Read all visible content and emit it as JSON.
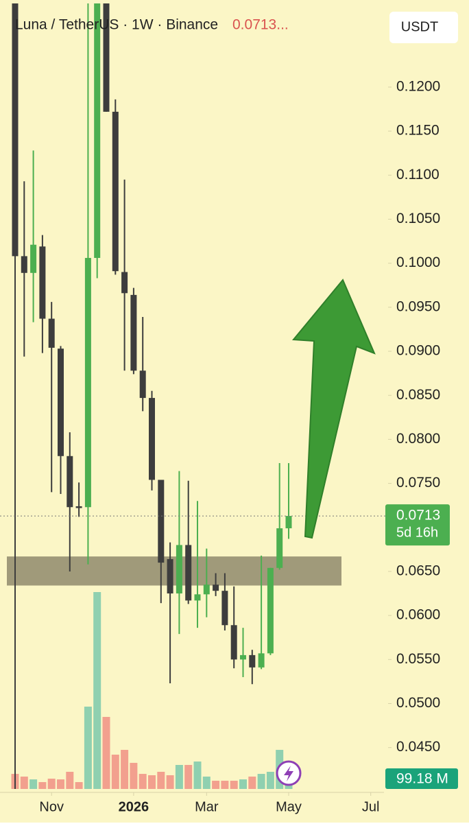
{
  "chart_data": {
    "type": "candlestick",
    "title": "Luna / TetherUS · 1W · Binance",
    "last_price_text": "0.0713...",
    "currency_button": "USDT",
    "open": [
      0.1295,
      0.1008,
      0.0989,
      0.1019,
      0.0937,
      0.0903,
      0.0781,
      0.0724,
      0.0723,
      0.1006,
      0.1295,
      0.1172,
      0.099,
      0.0964,
      0.0878,
      0.0847,
      0.0754,
      0.0664,
      0.0625,
      0.068,
      0.0617,
      0.0624,
      0.0635,
      0.0628,
      0.0589,
      0.055,
      0.0555,
      0.0541,
      0.0557,
      0.0654,
      0.0699
    ],
    "high": [
      0.1295,
      0.1093,
      0.1128,
      0.1032,
      0.0956,
      0.0906,
      0.0808,
      0.0751,
      0.1295,
      0.1295,
      0.1295,
      0.1186,
      0.1095,
      0.0972,
      0.0939,
      0.0855,
      0.0754,
      0.0683,
      0.0764,
      0.0753,
      0.073,
      0.0676,
      0.0648,
      0.0648,
      0.0633,
      0.0586,
      0.0561,
      0.0668,
      0.0654,
      0.0773,
      0.0773
    ],
    "low": [
      0.0403,
      0.0894,
      0.0933,
      0.0898,
      0.074,
      0.0738,
      0.065,
      0.0712,
      0.0658,
      0.0983,
      0.1172,
      0.0987,
      0.0878,
      0.0874,
      0.0832,
      0.0742,
      0.0614,
      0.0523,
      0.0579,
      0.0613,
      0.0586,
      0.0598,
      0.0622,
      0.0583,
      0.054,
      0.053,
      0.0522,
      0.0539,
      0.0555,
      0.0652,
      0.0687
    ],
    "close": [
      0.1008,
      0.0989,
      0.1021,
      0.0937,
      0.0904,
      0.0781,
      0.0723,
      0.0722,
      0.1006,
      0.1295,
      0.1172,
      0.0991,
      0.0966,
      0.0878,
      0.0847,
      0.0754,
      0.066,
      0.0625,
      0.068,
      0.0617,
      0.0624,
      0.0635,
      0.0628,
      0.0589,
      0.055,
      0.0555,
      0.0541,
      0.0557,
      0.0654,
      0.0699,
      0.0713
    ],
    "volume": [
      145,
      119,
      92,
      66,
      99,
      92,
      165,
      66,
      792,
      1894,
      693,
      330,
      376,
      251,
      145,
      132,
      165,
      132,
      231,
      231,
      264,
      119,
      79,
      79,
      79,
      92,
      119,
      145,
      165,
      376,
      99.18
    ],
    "volume_label": "99.18 M",
    "bull_color": "#4caf50",
    "bear_color": "#3d3d3d",
    "bull_volume_color": "#8fd0b0",
    "bear_volume_color": "#f2a08e",
    "ylim": [
      0.0403,
      0.1295
    ],
    "yticks": [
      {
        "value": 0.045,
        "label": "0.0450"
      },
      {
        "value": 0.05,
        "label": "0.0500"
      },
      {
        "value": 0.055,
        "label": "0.0550"
      },
      {
        "value": 0.06,
        "label": "0.0600"
      },
      {
        "value": 0.065,
        "label": "0.0650"
      },
      {
        "value": 0.07,
        "label": "0.0700"
      },
      {
        "value": 0.075,
        "label": "0.0750"
      },
      {
        "value": 0.08,
        "label": "0.0800"
      },
      {
        "value": 0.085,
        "label": "0.0850"
      },
      {
        "value": 0.09,
        "label": "0.0900"
      },
      {
        "value": 0.095,
        "label": "0.0950"
      },
      {
        "value": 0.1,
        "label": "0.1000"
      },
      {
        "value": 0.105,
        "label": "0.1050"
      },
      {
        "value": 0.11,
        "label": "0.1100"
      },
      {
        "value": 0.115,
        "label": "0.1150"
      },
      {
        "value": 0.12,
        "label": "0.1200"
      }
    ],
    "xticks": [
      {
        "value": 4,
        "label": "Nov"
      },
      {
        "value": 13,
        "label": "2026"
      },
      {
        "value": 21,
        "label": "Mar"
      },
      {
        "value": 30,
        "label": "May"
      },
      {
        "value": 39,
        "label": "Jul"
      }
    ],
    "current_price": {
      "value": 0.0713,
      "label": "0.0713"
    },
    "countdown": "5d 16h",
    "zone": [
      0.0634,
      0.0667
    ]
  }
}
